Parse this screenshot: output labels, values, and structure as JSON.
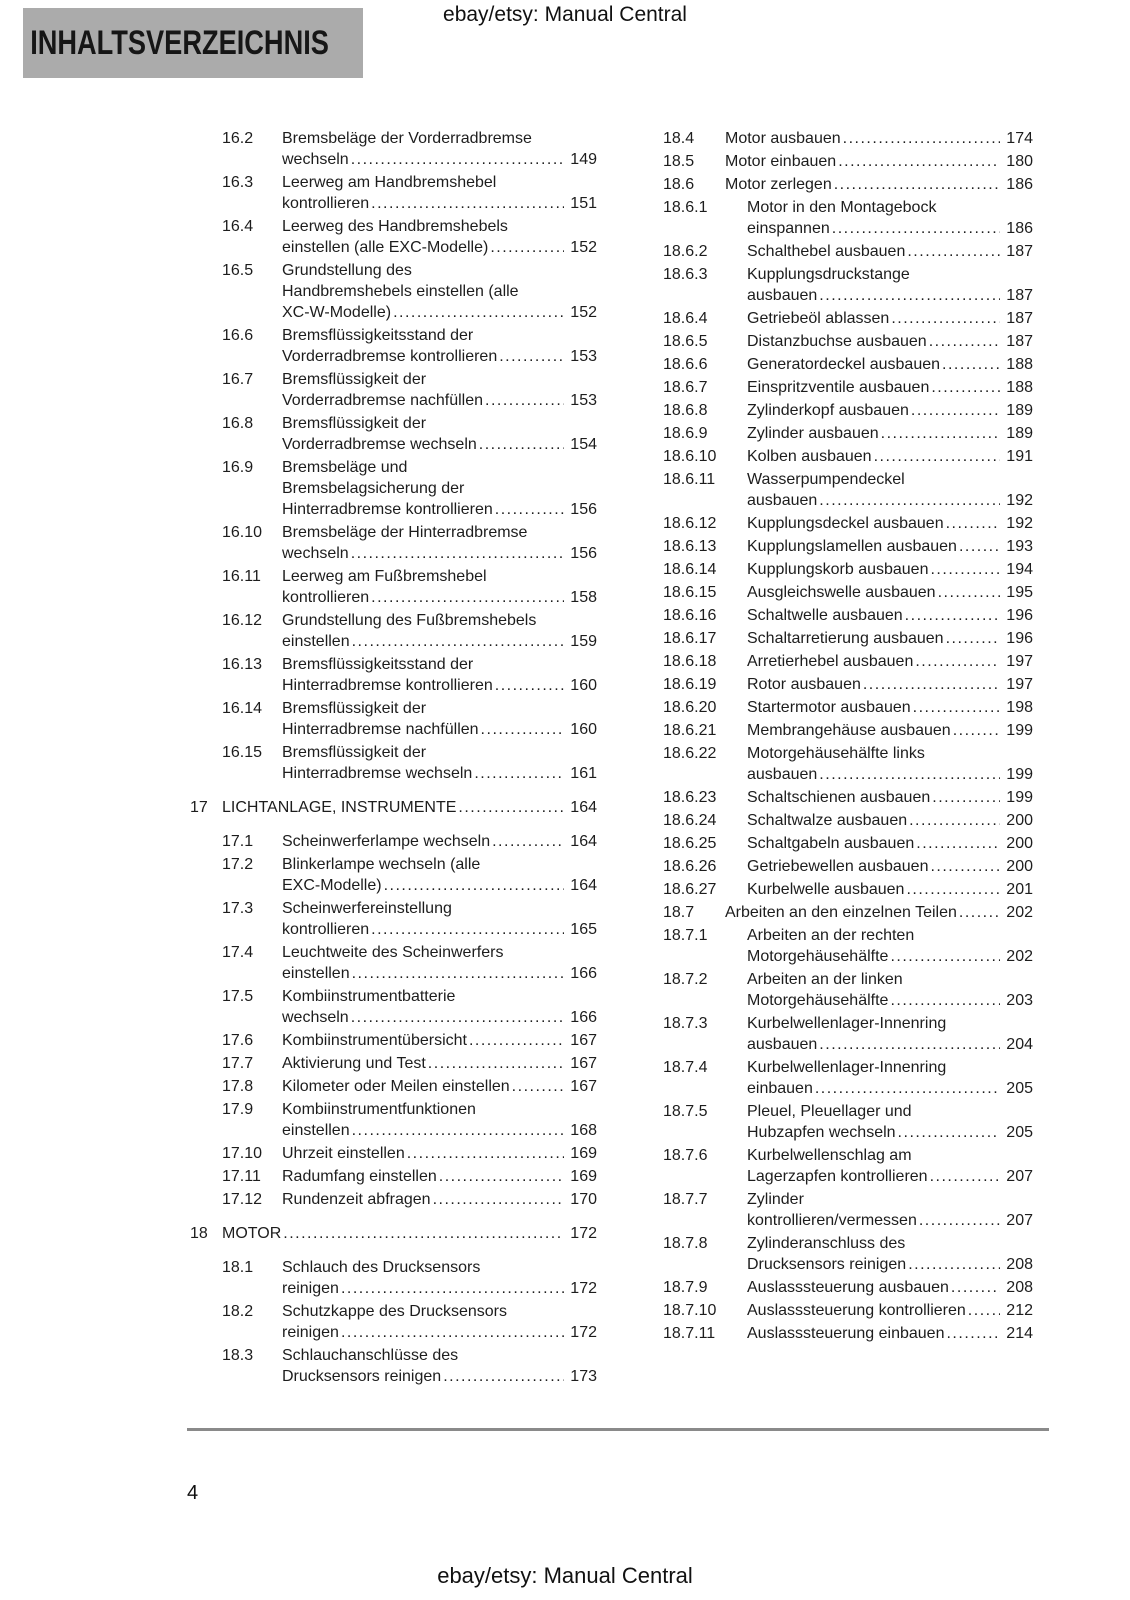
{
  "page": {
    "header_note": "ebay/etsy: Manual Central",
    "title": "INHALTSVERZEICHNIS",
    "footer_note": "ebay/etsy: Manual Central",
    "page_number": "4",
    "colors": {
      "title_box_bg": "#ababab",
      "text": "#1d1d1d",
      "rule": "#8a8a8a"
    }
  },
  "toc": {
    "columns": [
      {
        "side": "left",
        "entries": [
          {
            "num": "16.2",
            "level": "sub",
            "lines": [
              "Bremsbeläge der Vorderradbremse",
              "wechseln"
            ],
            "page": "149"
          },
          {
            "num": "16.3",
            "level": "sub",
            "lines": [
              "Leerweg am Handbremshebel",
              "kontrollieren"
            ],
            "page": "151"
          },
          {
            "num": "16.4",
            "level": "sub",
            "lines": [
              "Leerweg des Handbremshebels",
              "einstellen (alle EXC-Modelle)"
            ],
            "page": "152"
          },
          {
            "num": "16.5",
            "level": "sub",
            "lines": [
              "Grundstellung des",
              "Handbremshebels einstellen (alle",
              "XC-W-Modelle)"
            ],
            "page": "152"
          },
          {
            "num": "16.6",
            "level": "sub",
            "lines": [
              "Bremsflüssigkeitsstand der",
              "Vorderradbremse kontrollieren"
            ],
            "page": "153"
          },
          {
            "num": "16.7",
            "level": "sub",
            "lines": [
              "Bremsflüssigkeit der",
              "Vorderradbremse nachfüllen"
            ],
            "page": "153"
          },
          {
            "num": "16.8",
            "level": "sub",
            "lines": [
              "Bremsflüssigkeit der",
              "Vorderradbremse wechseln"
            ],
            "page": "154"
          },
          {
            "num": "16.9",
            "level": "sub",
            "lines": [
              "Bremsbeläge und",
              "Bremsbelagsicherung der",
              "Hinterradbremse kontrollieren"
            ],
            "page": "156"
          },
          {
            "num": "16.10",
            "level": "sub",
            "lines": [
              "Bremsbeläge der Hinterradbremse",
              "wechseln"
            ],
            "page": "156"
          },
          {
            "num": "16.11",
            "level": "sub",
            "lines": [
              "Leerweg am Fußbremshebel",
              "kontrollieren"
            ],
            "page": "158"
          },
          {
            "num": "16.12",
            "level": "sub",
            "lines": [
              "Grundstellung des Fußbremshebels",
              "einstellen"
            ],
            "page": "159"
          },
          {
            "num": "16.13",
            "level": "sub",
            "lines": [
              "Bremsflüssigkeitsstand der",
              "Hinterradbremse kontrollieren"
            ],
            "page": "160"
          },
          {
            "num": "16.14",
            "level": "sub",
            "lines": [
              "Bremsflüssigkeit der",
              "Hinterradbremse nachfüllen"
            ],
            "page": "160"
          },
          {
            "num": "16.15",
            "level": "sub",
            "lines": [
              "Bremsflüssigkeit der",
              "Hinterradbremse wechseln"
            ],
            "page": "161"
          },
          {
            "num": "17",
            "level": "section",
            "lines": [
              "LICHTANLAGE, INSTRUMENTE"
            ],
            "page": "164"
          },
          {
            "num": "17.1",
            "level": "sub",
            "lines": [
              "Scheinwerferlampe wechseln"
            ],
            "page": "164"
          },
          {
            "num": "17.2",
            "level": "sub",
            "lines": [
              "Blinkerlampe wechseln (alle",
              "EXC-Modelle)"
            ],
            "page": "164"
          },
          {
            "num": "17.3",
            "level": "sub",
            "lines": [
              "Scheinwerfereinstellung",
              "kontrollieren"
            ],
            "page": "165"
          },
          {
            "num": "17.4",
            "level": "sub",
            "lines": [
              "Leuchtweite des Scheinwerfers",
              "einstellen"
            ],
            "page": "166"
          },
          {
            "num": "17.5",
            "level": "sub",
            "lines": [
              "Kombiinstrumentbatterie",
              "wechseln"
            ],
            "page": "166"
          },
          {
            "num": "17.6",
            "level": "sub",
            "lines": [
              "Kombiinstrumentübersicht"
            ],
            "page": "167"
          },
          {
            "num": "17.7",
            "level": "sub",
            "lines": [
              "Aktivierung und Test"
            ],
            "page": "167"
          },
          {
            "num": "17.8",
            "level": "sub",
            "lines": [
              "Kilometer oder Meilen einstellen"
            ],
            "page": "167"
          },
          {
            "num": "17.9",
            "level": "sub",
            "lines": [
              "Kombiinstrumentfunktionen",
              "einstellen"
            ],
            "page": "168"
          },
          {
            "num": "17.10",
            "level": "sub",
            "lines": [
              "Uhrzeit einstellen"
            ],
            "page": "169"
          },
          {
            "num": "17.11",
            "level": "sub",
            "lines": [
              "Radumfang einstellen"
            ],
            "page": "169"
          },
          {
            "num": "17.12",
            "level": "sub",
            "lines": [
              "Rundenzeit abfragen"
            ],
            "page": "170"
          },
          {
            "num": "18",
            "level": "section",
            "lines": [
              "MOTOR"
            ],
            "page": "172"
          },
          {
            "num": "18.1",
            "level": "sub",
            "lines": [
              "Schlauch des Drucksensors",
              "reinigen"
            ],
            "page": "172"
          },
          {
            "num": "18.2",
            "level": "sub",
            "lines": [
              "Schutzkappe des Drucksensors",
              "reinigen"
            ],
            "page": "172"
          },
          {
            "num": "18.3",
            "level": "sub",
            "lines": [
              "Schlauchanschlüsse des",
              "Drucksensors reinigen"
            ],
            "page": "173"
          }
        ]
      },
      {
        "side": "right",
        "entries": [
          {
            "num": "18.4",
            "level": "sub",
            "lines": [
              "Motor ausbauen"
            ],
            "page": "174"
          },
          {
            "num": "18.5",
            "level": "sub",
            "lines": [
              "Motor einbauen"
            ],
            "page": "180"
          },
          {
            "num": "18.6",
            "level": "sub",
            "lines": [
              "Motor zerlegen"
            ],
            "page": "186"
          },
          {
            "num": "18.6.1",
            "level": "subsub",
            "lines": [
              "Motor in den Montagebock",
              "einspannen"
            ],
            "page": "186"
          },
          {
            "num": "18.6.2",
            "level": "subsub",
            "lines": [
              "Schalthebel ausbauen"
            ],
            "page": "187"
          },
          {
            "num": "18.6.3",
            "level": "subsub",
            "lines": [
              "Kupplungsdruckstange",
              "ausbauen"
            ],
            "page": "187"
          },
          {
            "num": "18.6.4",
            "level": "subsub",
            "lines": [
              "Getriebeöl ablassen"
            ],
            "page": "187"
          },
          {
            "num": "18.6.5",
            "level": "subsub",
            "lines": [
              "Distanzbuchse ausbauen"
            ],
            "page": "187"
          },
          {
            "num": "18.6.6",
            "level": "subsub",
            "lines": [
              "Generatordeckel ausbauen"
            ],
            "page": "188"
          },
          {
            "num": "18.6.7",
            "level": "subsub",
            "lines": [
              "Einspritzventile ausbauen"
            ],
            "page": "188"
          },
          {
            "num": "18.6.8",
            "level": "subsub",
            "lines": [
              "Zylinderkopf ausbauen"
            ],
            "page": "189"
          },
          {
            "num": "18.6.9",
            "level": "subsub",
            "lines": [
              "Zylinder ausbauen"
            ],
            "page": "189"
          },
          {
            "num": "18.6.10",
            "level": "subsub",
            "lines": [
              "Kolben ausbauen"
            ],
            "page": "191"
          },
          {
            "num": "18.6.11",
            "level": "subsub",
            "lines": [
              "Wasserpumpendeckel",
              "ausbauen"
            ],
            "page": "192"
          },
          {
            "num": "18.6.12",
            "level": "subsub",
            "lines": [
              "Kupplungsdeckel ausbauen"
            ],
            "page": "192"
          },
          {
            "num": "18.6.13",
            "level": "subsub",
            "lines": [
              "Kupplungslamellen ausbauen"
            ],
            "page": "193"
          },
          {
            "num": "18.6.14",
            "level": "subsub",
            "lines": [
              "Kupplungskorb ausbauen"
            ],
            "page": "194"
          },
          {
            "num": "18.6.15",
            "level": "subsub",
            "lines": [
              "Ausgleichswelle ausbauen"
            ],
            "page": "195"
          },
          {
            "num": "18.6.16",
            "level": "subsub",
            "lines": [
              "Schaltwelle ausbauen"
            ],
            "page": "196"
          },
          {
            "num": "18.6.17",
            "level": "subsub",
            "lines": [
              "Schaltarretierung ausbauen"
            ],
            "page": "196"
          },
          {
            "num": "18.6.18",
            "level": "subsub",
            "lines": [
              "Arretierhebel ausbauen"
            ],
            "page": "197"
          },
          {
            "num": "18.6.19",
            "level": "subsub",
            "lines": [
              "Rotor ausbauen"
            ],
            "page": "197"
          },
          {
            "num": "18.6.20",
            "level": "subsub",
            "lines": [
              "Startermotor ausbauen"
            ],
            "page": "198"
          },
          {
            "num": "18.6.21",
            "level": "subsub",
            "lines": [
              "Membrangehäuse ausbauen"
            ],
            "page": "199"
          },
          {
            "num": "18.6.22",
            "level": "subsub",
            "lines": [
              "Motorgehäusehälfte links",
              "ausbauen"
            ],
            "page": "199"
          },
          {
            "num": "18.6.23",
            "level": "subsub",
            "lines": [
              "Schaltschienen ausbauen"
            ],
            "page": "199"
          },
          {
            "num": "18.6.24",
            "level": "subsub",
            "lines": [
              "Schaltwalze ausbauen"
            ],
            "page": "200"
          },
          {
            "num": "18.6.25",
            "level": "subsub",
            "lines": [
              "Schaltgabeln ausbauen"
            ],
            "page": "200"
          },
          {
            "num": "18.6.26",
            "level": "subsub",
            "lines": [
              "Getriebewellen ausbauen"
            ],
            "page": "200"
          },
          {
            "num": "18.6.27",
            "level": "subsub",
            "lines": [
              "Kurbelwelle ausbauen"
            ],
            "page": "201"
          },
          {
            "num": "18.7",
            "level": "sub",
            "lines": [
              "Arbeiten an den einzelnen Teilen"
            ],
            "page": "202"
          },
          {
            "num": "18.7.1",
            "level": "subsub",
            "lines": [
              "Arbeiten an der rechten",
              "Motorgehäusehälfte"
            ],
            "page": "202"
          },
          {
            "num": "18.7.2",
            "level": "subsub",
            "lines": [
              "Arbeiten an der linken",
              "Motorgehäusehälfte"
            ],
            "page": "203"
          },
          {
            "num": "18.7.3",
            "level": "subsub",
            "lines": [
              "Kurbelwellenlager-Innenring",
              "ausbauen"
            ],
            "page": "204"
          },
          {
            "num": "18.7.4",
            "level": "subsub",
            "lines": [
              "Kurbelwellenlager-Innenring",
              "einbauen"
            ],
            "page": "205"
          },
          {
            "num": "18.7.5",
            "level": "subsub",
            "lines": [
              "Pleuel, Pleuellager und",
              "Hubzapfen wechseln"
            ],
            "page": "205"
          },
          {
            "num": "18.7.6",
            "level": "subsub",
            "lines": [
              "Kurbelwellenschlag am",
              "Lagerzapfen kontrollieren"
            ],
            "page": "207"
          },
          {
            "num": "18.7.7",
            "level": "subsub",
            "lines": [
              "Zylinder",
              "kontrollieren/vermessen"
            ],
            "page": "207"
          },
          {
            "num": "18.7.8",
            "level": "subsub",
            "lines": [
              "Zylinderanschluss des",
              "Drucksensors reinigen"
            ],
            "page": "208"
          },
          {
            "num": "18.7.9",
            "level": "subsub",
            "lines": [
              "Auslasssteuerung ausbauen"
            ],
            "page": "208"
          },
          {
            "num": "18.7.10",
            "level": "subsub",
            "lines": [
              "Auslasssteuerung kontrollieren"
            ],
            "page": "212"
          },
          {
            "num": "18.7.11",
            "level": "subsub",
            "lines": [
              "Auslasssteuerung einbauen"
            ],
            "page": "214"
          }
        ]
      }
    ]
  }
}
